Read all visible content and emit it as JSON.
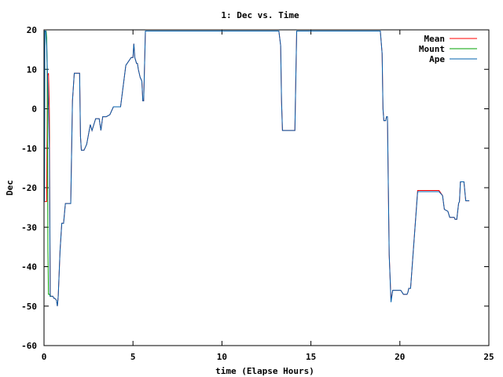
{
  "chart_data": {
    "type": "line",
    "title": "1: Dec vs. Time",
    "xlabel": "time (Elapse Hours)",
    "ylabel": "Dec",
    "xlim": [
      0,
      25
    ],
    "ylim": [
      -60,
      20
    ],
    "xticks": [
      0,
      5,
      10,
      15,
      20,
      25
    ],
    "yticks": [
      -60,
      -50,
      -40,
      -30,
      -20,
      -10,
      0,
      10,
      20
    ],
    "grid": false,
    "legend_position": "top-right",
    "series": [
      {
        "name": "Mean",
        "color": "#ff0000",
        "x": [
          0.0,
          0.15,
          0.2,
          0.25,
          0.3,
          0.35,
          0.4,
          0.5,
          0.55,
          0.6,
          0.7,
          0.75,
          0.8,
          0.9,
          1.0,
          1.1,
          1.2,
          1.3,
          1.5,
          1.6,
          1.7,
          1.75,
          2.0,
          2.05,
          2.1,
          2.25,
          2.4,
          2.5,
          2.6,
          2.7,
          2.9,
          3.1,
          3.2,
          3.3,
          3.5,
          3.7,
          3.9,
          4.1,
          4.3,
          4.6,
          4.9,
          5.0,
          5.05,
          5.1,
          5.2,
          5.25,
          5.3,
          5.4,
          5.5,
          5.55,
          5.6,
          5.7,
          5.8,
          13.1,
          13.2,
          13.3,
          13.35,
          13.4,
          14.0,
          14.1,
          14.2,
          18.7,
          18.9,
          19.0,
          19.05,
          19.1,
          19.2,
          19.25,
          19.3,
          19.35,
          19.4,
          19.5,
          19.6,
          19.8,
          19.9,
          20.05,
          20.2,
          20.3,
          20.4,
          20.45,
          20.5,
          20.6,
          21.0,
          21.5,
          22.0,
          22.05,
          22.2,
          22.4,
          22.5,
          22.7,
          22.8,
          22.9,
          23.0,
          23.05,
          23.1,
          23.2,
          23.3,
          23.35,
          23.4,
          23.5,
          23.6,
          23.7,
          23.8,
          23.9
        ],
        "y": [
          -23.5,
          -23.5,
          8.5,
          9.0,
          0.0,
          -47.5,
          -47.5,
          -47.5,
          -48.0,
          -48.0,
          -48.5,
          -50.0,
          -47.5,
          -36.0,
          -29.0,
          -29.0,
          -24.0,
          -24.0,
          -24.0,
          2.0,
          9.0,
          9.0,
          9.0,
          -7.0,
          -10.5,
          -10.5,
          -9.0,
          -6.5,
          -4.0,
          -5.5,
          -2.5,
          -2.5,
          -5.5,
          -2.0,
          -2.0,
          -1.5,
          0.5,
          0.5,
          0.5,
          11.0,
          13.0,
          13.0,
          16.5,
          13.0,
          11.5,
          11.5,
          10.0,
          8.0,
          7.0,
          2.0,
          2.0,
          19.7,
          19.7,
          19.7,
          19.7,
          16.0,
          2.0,
          -5.5,
          -5.5,
          -5.5,
          19.7,
          19.7,
          19.7,
          14.0,
          0.0,
          -3.0,
          -3.0,
          -2.0,
          -2.0,
          -20.0,
          -37.0,
          -48.5,
          -46.0,
          -46.0,
          -46.0,
          -46.0,
          -47.0,
          -47.0,
          -47.0,
          -46.5,
          -45.5,
          -45.5,
          -20.7,
          -20.7,
          -20.7,
          -20.7,
          -20.7,
          -22.0,
          -25.5,
          -26.0,
          -27.5,
          -27.5,
          -27.5,
          -27.5,
          -28.0,
          -28.0,
          -24.0,
          -23.5,
          -18.5,
          -18.5,
          -18.5,
          -23.3,
          -23.3,
          -23.3
        ]
      },
      {
        "name": "Mount",
        "color": "#00a000",
        "x": [
          0.0,
          0.02,
          0.05,
          0.1,
          0.12,
          0.15,
          0.18,
          0.2,
          0.22,
          0.25,
          0.3,
          0.32,
          0.35,
          0.4
        ],
        "y": [
          -23.0,
          -23.0,
          19.7,
          19.7,
          19.7,
          18.0,
          9.0,
          -10.0,
          -36.0,
          -47.0,
          -47.0,
          -47.0,
          -47.5,
          -47.5
        ]
      },
      {
        "name": "Ape",
        "color": "#0060ad",
        "x": [
          0.0,
          0.02,
          0.05,
          0.1,
          0.15,
          0.2,
          0.25,
          0.3,
          0.35,
          0.4,
          0.5,
          0.55,
          0.6,
          0.7,
          0.75,
          0.8,
          0.9,
          1.0,
          1.1,
          1.2,
          1.3,
          1.5,
          1.6,
          1.7,
          1.75,
          2.0,
          2.05,
          2.1,
          2.25,
          2.4,
          2.5,
          2.6,
          2.7,
          2.9,
          3.1,
          3.2,
          3.3,
          3.5,
          3.7,
          3.9,
          4.1,
          4.3,
          4.6,
          4.9,
          5.0,
          5.05,
          5.1,
          5.2,
          5.25,
          5.3,
          5.4,
          5.5,
          5.55,
          5.6,
          5.7,
          5.8,
          13.1,
          13.2,
          13.3,
          13.35,
          13.4,
          14.0,
          14.1,
          14.2,
          18.7,
          18.9,
          19.0,
          19.05,
          19.1,
          19.2,
          19.25,
          19.3,
          19.35,
          19.4,
          19.5,
          19.6,
          19.8,
          19.9,
          20.05,
          20.2,
          20.3,
          20.4,
          20.45,
          20.5,
          20.6,
          21.0,
          21.5,
          22.0,
          22.05,
          22.2,
          22.4,
          22.5,
          22.7,
          22.8,
          22.9,
          23.0,
          23.05,
          23.1,
          23.2,
          23.3,
          23.35,
          23.4,
          23.5,
          23.6,
          23.7,
          23.8,
          23.9
        ],
        "y": [
          -23.5,
          -23.5,
          19.7,
          19.7,
          16.0,
          8.0,
          0.0,
          -10.0,
          -47.5,
          -47.5,
          -47.5,
          -48.0,
          -48.0,
          -48.5,
          -50.0,
          -47.5,
          -36.0,
          -29.0,
          -29.0,
          -24.0,
          -24.0,
          -24.0,
          2.0,
          9.0,
          9.0,
          9.0,
          -7.0,
          -10.5,
          -10.5,
          -9.0,
          -6.5,
          -4.0,
          -5.5,
          -2.5,
          -2.5,
          -5.5,
          -2.0,
          -2.0,
          -1.5,
          0.5,
          0.5,
          0.5,
          11.0,
          13.0,
          13.0,
          16.5,
          13.0,
          11.5,
          11.5,
          10.0,
          8.0,
          7.0,
          2.0,
          2.0,
          19.7,
          19.7,
          19.7,
          19.7,
          16.0,
          2.0,
          -5.5,
          -5.5,
          -5.5,
          19.7,
          19.7,
          19.7,
          14.0,
          0.0,
          -3.0,
          -3.0,
          -2.0,
          -2.0,
          -20.0,
          -37.0,
          -49.0,
          -46.0,
          -46.0,
          -46.0,
          -46.0,
          -47.0,
          -47.0,
          -47.0,
          -46.5,
          -45.5,
          -45.5,
          -21.0,
          -21.0,
          -21.0,
          -21.0,
          -21.0,
          -22.0,
          -25.5,
          -26.0,
          -27.5,
          -27.5,
          -27.5,
          -27.5,
          -28.0,
          -28.0,
          -24.0,
          -23.5,
          -18.5,
          -18.5,
          -18.5,
          -23.3,
          -23.3,
          -23.3
        ]
      }
    ]
  }
}
